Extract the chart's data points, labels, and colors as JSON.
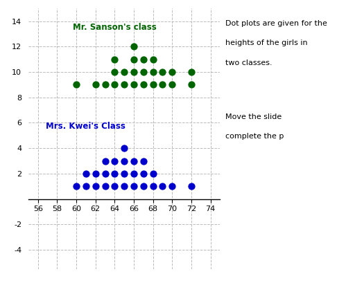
{
  "title_green": "Mr. Sanson's class",
  "title_blue": "Mrs. Kwei's Class",
  "annotation_line1": "Dot plots are given for the",
  "annotation_line2": "heights of the girls in",
  "annotation_line3": "two classes.",
  "annotation_line4": "Move the slide",
  "annotation_line5": "complete the p",
  "green_dots": [
    [
      60,
      9
    ],
    [
      62,
      9
    ],
    [
      63,
      9
    ],
    [
      64,
      9
    ],
    [
      65,
      9
    ],
    [
      66,
      9
    ],
    [
      67,
      9
    ],
    [
      68,
      9
    ],
    [
      69,
      9
    ],
    [
      70,
      9
    ],
    [
      72,
      9
    ],
    [
      64,
      10
    ],
    [
      65,
      10
    ],
    [
      66,
      10
    ],
    [
      67,
      10
    ],
    [
      68,
      10
    ],
    [
      69,
      10
    ],
    [
      70,
      10
    ],
    [
      72,
      10
    ],
    [
      64,
      11
    ],
    [
      66,
      11
    ],
    [
      67,
      11
    ],
    [
      68,
      11
    ],
    [
      66,
      12
    ]
  ],
  "blue_dots": [
    [
      60,
      1
    ],
    [
      61,
      1
    ],
    [
      62,
      1
    ],
    [
      63,
      1
    ],
    [
      64,
      1
    ],
    [
      65,
      1
    ],
    [
      66,
      1
    ],
    [
      67,
      1
    ],
    [
      68,
      1
    ],
    [
      69,
      1
    ],
    [
      70,
      1
    ],
    [
      72,
      1
    ],
    [
      61,
      2
    ],
    [
      62,
      2
    ],
    [
      63,
      2
    ],
    [
      64,
      2
    ],
    [
      65,
      2
    ],
    [
      66,
      2
    ],
    [
      67,
      2
    ],
    [
      68,
      2
    ],
    [
      63,
      3
    ],
    [
      64,
      3
    ],
    [
      65,
      3
    ],
    [
      66,
      3
    ],
    [
      67,
      3
    ],
    [
      65,
      4
    ]
  ],
  "green_color": "#006400",
  "blue_color": "#0000CD",
  "xlim": [
    55,
    75
  ],
  "ylim": [
    -5.5,
    15
  ],
  "xticks": [
    56,
    58,
    60,
    62,
    64,
    66,
    68,
    70,
    72,
    74
  ],
  "yticks": [
    -4,
    -2,
    0,
    2,
    4,
    6,
    8,
    10,
    12,
    14
  ],
  "dot_size": 55,
  "grid_color": "#bbbbbb",
  "bg_color": "#ffffff"
}
